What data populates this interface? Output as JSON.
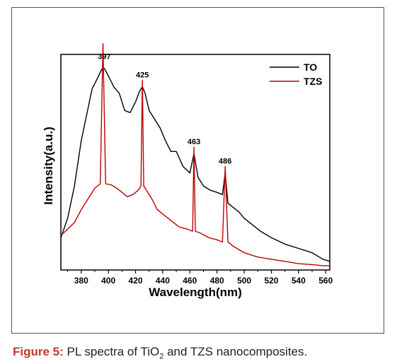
{
  "chart_data": {
    "type": "line",
    "xlabel": "Wavelength(nm)",
    "ylabel": "Intensity(a.u.)",
    "xlim": [
      365,
      563
    ],
    "ylim": [
      0,
      1.0
    ],
    "xticks": [
      380,
      400,
      420,
      440,
      460,
      480,
      500,
      520,
      540,
      560
    ],
    "y_tick_labels": false,
    "legend": {
      "position": "top-right"
    },
    "peak_labels": [
      {
        "text": "397",
        "x": 397,
        "y": 0.965
      },
      {
        "text": "425",
        "x": 425,
        "y": 0.88
      },
      {
        "text": "463",
        "x": 463,
        "y": 0.57
      },
      {
        "text": "486",
        "x": 486,
        "y": 0.48
      }
    ],
    "series": [
      {
        "name": "TO",
        "color": "#000000",
        "x": [
          365,
          370,
          375,
          380,
          384,
          388,
          392,
          395,
          397,
          400,
          404,
          408,
          412,
          416,
          420,
          423,
          425,
          427,
          430,
          434,
          438,
          442,
          446,
          450,
          455,
          460,
          463,
          466,
          470,
          475,
          480,
          484,
          486,
          488,
          492,
          496,
          500,
          506,
          512,
          520,
          530,
          540,
          550,
          558,
          563
        ],
        "y": [
          0.15,
          0.24,
          0.39,
          0.6,
          0.72,
          0.84,
          0.89,
          0.93,
          0.935,
          0.9,
          0.85,
          0.82,
          0.74,
          0.73,
          0.78,
          0.83,
          0.85,
          0.82,
          0.74,
          0.7,
          0.66,
          0.6,
          0.55,
          0.55,
          0.48,
          0.45,
          0.54,
          0.43,
          0.39,
          0.37,
          0.36,
          0.35,
          0.45,
          0.31,
          0.29,
          0.27,
          0.24,
          0.21,
          0.18,
          0.15,
          0.12,
          0.1,
          0.08,
          0.05,
          0.04
        ]
      },
      {
        "name": "TZS",
        "color": "#c00000",
        "x": [
          365,
          370,
          375,
          380,
          385,
          390,
          394,
          396,
          398,
          402,
          406,
          410,
          414,
          418,
          422,
          424,
          425,
          426,
          428,
          432,
          436,
          440,
          446,
          452,
          458,
          462,
          463,
          464,
          468,
          474,
          480,
          484,
          486,
          488,
          492,
          500,
          510,
          520,
          530,
          540,
          550,
          558,
          563
        ],
        "y": [
          0.16,
          0.19,
          0.22,
          0.28,
          0.33,
          0.38,
          0.4,
          1.05,
          0.4,
          0.395,
          0.38,
          0.36,
          0.34,
          0.35,
          0.37,
          0.39,
          0.88,
          0.39,
          0.37,
          0.33,
          0.28,
          0.26,
          0.23,
          0.2,
          0.19,
          0.18,
          0.57,
          0.18,
          0.17,
          0.15,
          0.14,
          0.13,
          0.48,
          0.13,
          0.11,
          0.08,
          0.06,
          0.05,
          0.04,
          0.03,
          0.025,
          0.02,
          0.02
        ]
      }
    ]
  },
  "caption": {
    "label": "Figure 5:",
    "text_pre": " PL spectra of TiO",
    "subscript": "2",
    "text_post": " and TZS nanocomposites."
  }
}
